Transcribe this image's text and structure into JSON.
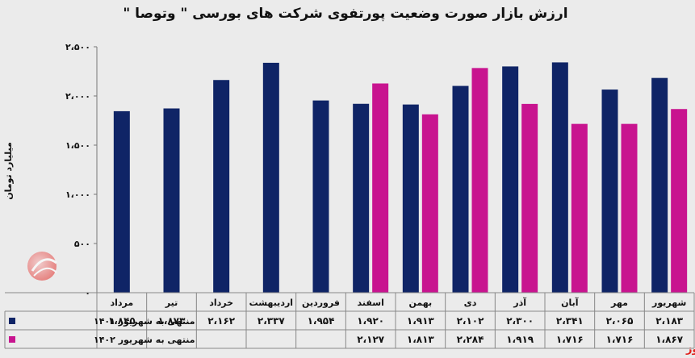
{
  "chart_data": {
    "type": "bar",
    "title": "ارزش بازار صورت وضعیت پورتفوی شرکت های بورسی \" وتوصا \"",
    "ylabel": "میلیارد تومان",
    "ylim": [
      0,
      2500
    ],
    "yticks": [
      "۰",
      "۵۰۰",
      "۱،۰۰۰",
      "۱،۵۰۰",
      "۲،۰۰۰",
      "۲،۵۰۰"
    ],
    "categories": [
      "شهریور",
      "مهر",
      "آبان",
      "آذر",
      "دی",
      "بهمن",
      "اسفند",
      "فروردین",
      "اردیبهشت",
      "خرداد",
      "تیر",
      "مرداد"
    ],
    "series": [
      {
        "name": "منتهی به شهریور ۱۴۰۱",
        "color": "#0f2466",
        "values": [
          2183,
          2065,
          2341,
          2300,
          2102,
          1913,
          1920,
          1954,
          2337,
          2162,
          1873,
          1845
        ],
        "labels": [
          "۲،۱۸۳",
          "۲،۰۶۵",
          "۲،۳۴۱",
          "۲،۳۰۰",
          "۲،۱۰۲",
          "۱،۹۱۳",
          "۱،۹۲۰",
          "۱،۹۵۴",
          "۲،۳۳۷",
          "۲،۱۶۲",
          "۱،۸۷۳",
          "۱،۸۴۵"
        ]
      },
      {
        "name": "منتهی به شهریور ۱۴۰۲",
        "color": "#c8148f",
        "values": [
          1867,
          1716,
          1716,
          1919,
          2284,
          1813,
          2127,
          null,
          null,
          null,
          null,
          null
        ],
        "labels": [
          "۱،۸۶۷",
          "۱،۷۱۶",
          "۱،۷۱۶",
          "۱،۹۱۹",
          "۲،۲۸۴",
          "۱،۸۱۳",
          "۲،۱۲۷",
          "",
          "",
          "",
          "",
          ""
        ]
      }
    ],
    "grid": false,
    "legend": "bottom-table"
  },
  "source": "بورس نیوز"
}
